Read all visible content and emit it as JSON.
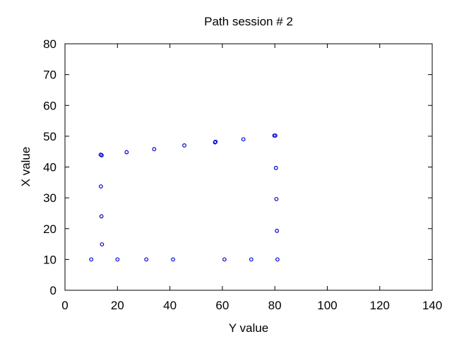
{
  "chart_data": {
    "type": "scatter",
    "title": "Path session # 2",
    "xlabel": "Y value",
    "ylabel": "X value",
    "xlim": [
      0,
      140
    ],
    "ylim": [
      0,
      80
    ],
    "xticks": [
      0,
      20,
      40,
      60,
      80,
      100,
      120,
      140
    ],
    "yticks": [
      0,
      10,
      20,
      30,
      40,
      50,
      60,
      70,
      80
    ],
    "grid": false,
    "marker_color": "#0000cc",
    "series": [
      {
        "x": [
          10.0,
          20.0,
          31.0,
          41.2,
          60.8,
          71.0,
          81.0,
          80.8,
          80.6,
          80.4,
          80.2,
          79.8,
          68.0,
          57.2,
          57.4,
          45.5,
          34.0,
          23.5,
          14.0,
          13.6,
          13.7,
          13.9,
          14.1
        ],
        "y": [
          10.0,
          10.0,
          10.0,
          10.0,
          10.0,
          10.0,
          10.0,
          19.3,
          29.6,
          39.7,
          50.2,
          50.2,
          49.0,
          48.0,
          48.2,
          47.0,
          45.8,
          44.8,
          43.8,
          44.0,
          33.7,
          24.0,
          14.9
        ]
      }
    ]
  }
}
